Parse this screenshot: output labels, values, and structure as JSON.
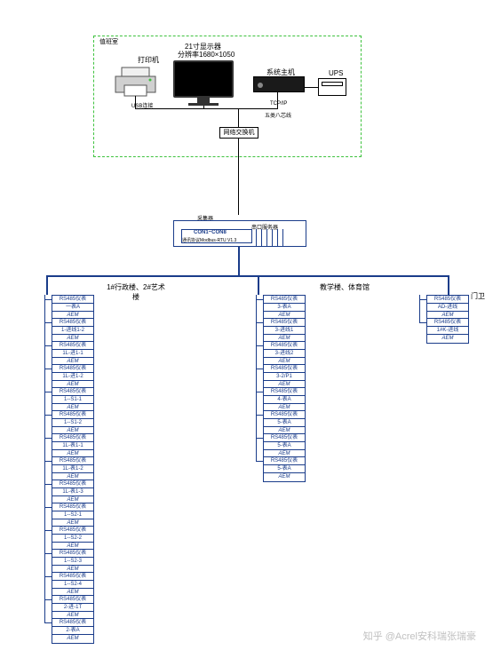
{
  "room_label": "值班室",
  "monitor_title": "21寸显示器",
  "monitor_res": "分辨率1680×1050",
  "printer_label": "打印机",
  "usb_label": "USB连接",
  "host_label": "系统主机",
  "ups_label": "UPS",
  "tcpip_label": "TCP/IP",
  "cat5_label": "五类八芯线",
  "switch_label": "网络交换机",
  "collector_label": "采集器",
  "serial_server": "串口服务器",
  "com_label": "CON1~CON8",
  "com_desc": "通讯协议Modbus-RTU V1.3",
  "col1_title": "1#行政楼、2#艺术楼",
  "col2_title": "教学楼、体育馆",
  "col3_title": "门卫",
  "device_header": "RS485仪表",
  "device_bot": "AEM",
  "col1": [
    "一表A",
    "1-进线1-2",
    "AEM",
    "1L-进线1-1",
    "AEM",
    "1L-进线1-2",
    "AEM",
    "1--S1-1",
    "AEM",
    "1--S1-2",
    "AEM",
    "1L-表1-1",
    "AEM",
    "1L-表1-2",
    "AEM",
    "1L-表1-3",
    "AEM",
    "1--S2-1",
    "AEM",
    "1--S2-2",
    "AEM",
    "1--S2-3",
    "AEM",
    "1--S2-4",
    "AEM",
    "2-进线-1T",
    "AEM",
    "2-表A"
  ],
  "col1_rows": [
    "一表A",
    "1-进线1-2",
    "1L-进1-1",
    "1L-进1-2",
    "1--S1-1",
    "1--S1-2",
    "1L-表1-1",
    "1L-表1-2",
    "1L-表1-3",
    "1--S2-1",
    "1--S2-2",
    "1--S2-3",
    "1--S2-4",
    "2-进-1T",
    "2-表A"
  ],
  "col2_rows": [
    "3-表A",
    "3-进线1",
    "3-进线2",
    "3-2/P1",
    "4-表A",
    "5-表A",
    "5-表A",
    "5-表A"
  ],
  "col3_rows": [
    "AD-进线",
    "1#K-进线"
  ],
  "watermark": "知乎 @Acrel安科瑞张瑞豪",
  "colors": {
    "dash": "#3ec23e",
    "line": "#1a3c8a"
  }
}
